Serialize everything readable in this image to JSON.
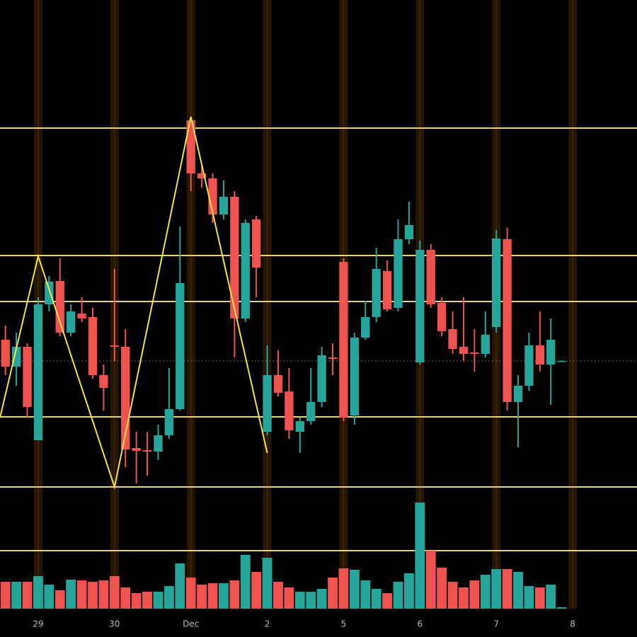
{
  "chart_data": {
    "type": "candlestick",
    "xlim": [
      -0.5,
      57.9
    ],
    "xticks": [
      {
        "value": 3,
        "label": "29"
      },
      {
        "value": 10,
        "label": "30"
      },
      {
        "value": 17,
        "label": "Dec"
      },
      {
        "value": 24,
        "label": "2"
      },
      {
        "value": 31,
        "label": "5"
      },
      {
        "value": 38,
        "label": "6"
      },
      {
        "value": 45,
        "label": "7"
      },
      {
        "value": 52,
        "label": "8"
      }
    ],
    "ylim": [
      200,
      900
    ],
    "y2lim": [
      0,
      200
    ],
    "open": [
      420,
      382,
      410,
      278,
      470,
      503,
      430,
      457,
      452,
      370,
      412,
      410,
      267,
      264,
      262,
      285,
      322,
      730,
      655,
      648,
      597,
      622,
      450,
      590,
      290,
      370,
      347,
      290,
      305,
      332,
      395,
      530,
      313,
      423,
      452,
      517,
      465,
      562,
      388,
      547,
      472,
      435,
      410,
      402,
      400,
      438,
      562,
      332,
      355,
      412,
      385,
      390
    ],
    "high": [
      440,
      430,
      415,
      480,
      510,
      535,
      470,
      480,
      465,
      385,
      520,
      435,
      290,
      290,
      300,
      380,
      580,
      735,
      665,
      655,
      645,
      630,
      590,
      595,
      412,
      405,
      380,
      310,
      380,
      410,
      415,
      535,
      430,
      475,
      550,
      532,
      590,
      615,
      560,
      555,
      480,
      460,
      480,
      435,
      460,
      575,
      578,
      370,
      430,
      460,
      450,
      391
    ],
    "low": [
      370,
      355,
      310,
      278,
      460,
      425,
      425,
      445,
      365,
      320,
      390,
      240,
      217,
      228,
      250,
      280,
      320,
      630,
      635,
      585,
      590,
      395,
      445,
      480,
      285,
      340,
      280,
      260,
      300,
      325,
      370,
      305,
      300,
      420,
      445,
      460,
      460,
      555,
      385,
      465,
      425,
      400,
      390,
      375,
      395,
      430,
      320,
      268,
      348,
      375,
      328,
      389
    ],
    "close": [
      382,
      410,
      325,
      470,
      502,
      430,
      460,
      450,
      370,
      352,
      410,
      265,
      263,
      262,
      285,
      322,
      500,
      655,
      648,
      597,
      622,
      450,
      585,
      522,
      370,
      345,
      292,
      305,
      332,
      398,
      393,
      310,
      423,
      452,
      520,
      463,
      562,
      582,
      547,
      470,
      432,
      407,
      400,
      400,
      427,
      563,
      332,
      355,
      412,
      385,
      420,
      390
    ],
    "volume": [
      38,
      38,
      38,
      46,
      34,
      26,
      41,
      40,
      38,
      40,
      46,
      30,
      22,
      24,
      24,
      32,
      64,
      44,
      34,
      36,
      36,
      40,
      76,
      52,
      72,
      38,
      30,
      24,
      24,
      28,
      44,
      57,
      55,
      40,
      28,
      22,
      38,
      50,
      150,
      82,
      58,
      38,
      30,
      40,
      48,
      56,
      56,
      52,
      32,
      30,
      34,
      2
    ],
    "up_color": "#26a69a",
    "down_color": "#ef5350",
    "levels": [
      719,
      539,
      474,
      311,
      212
    ],
    "volume_levels": [
      82
    ],
    "level_color": "#e6d27a",
    "zigzag": {
      "x": [
        -0.5,
        3,
        10,
        17,
        24
      ],
      "values": [
        310,
        538,
        212,
        735,
        260
      ],
      "color": "#f2e24a"
    },
    "grid": true
  }
}
